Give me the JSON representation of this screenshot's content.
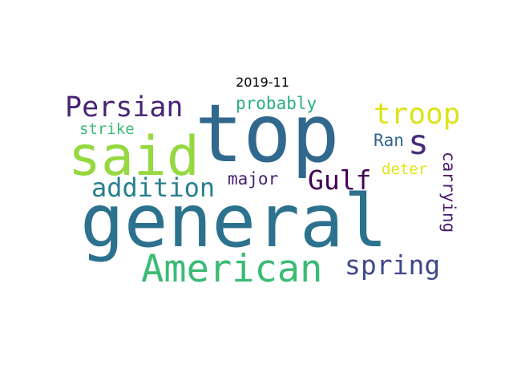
{
  "title": "2019-11",
  "words": [
    {
      "text": "general",
      "color": "#2c728e"
    },
    {
      "text": "top",
      "color": "#31688e"
    },
    {
      "text": "said",
      "color": "#95d840"
    },
    {
      "text": "American",
      "color": "#3bbb75"
    },
    {
      "text": "Persian",
      "color": "#482475"
    },
    {
      "text": "troop",
      "color": "#dde318"
    },
    {
      "text": "s",
      "color": "#472c7a"
    },
    {
      "text": "addition",
      "color": "#277f8e"
    },
    {
      "text": "Gulf",
      "color": "#440154"
    },
    {
      "text": "spring",
      "color": "#3f4889"
    },
    {
      "text": "probably",
      "color": "#29af7f"
    },
    {
      "text": "strike",
      "color": "#3dbc74"
    },
    {
      "text": "major",
      "color": "#482173"
    },
    {
      "text": "Ran",
      "color": "#33638d"
    },
    {
      "text": "deter",
      "color": "#e3e418"
    },
    {
      "text": "carrying",
      "color": "#481f70"
    }
  ]
}
